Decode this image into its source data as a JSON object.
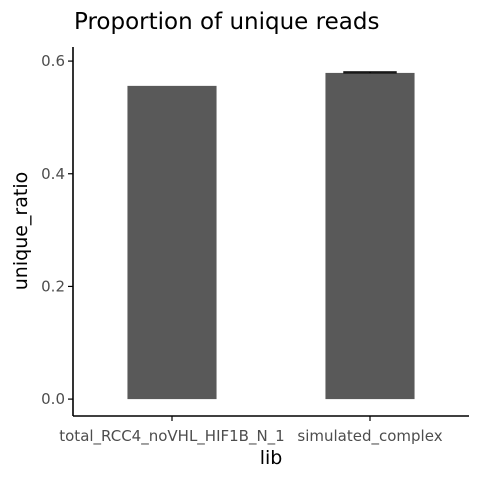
{
  "chart_data": {
    "type": "bar",
    "title": "Proportion of unique reads",
    "xlabel": "lib",
    "ylabel": "unique_ratio",
    "categories": [
      "total_RCC4_noVHL_HIF1B_N_1",
      "simulated_complex"
    ],
    "values": [
      0.556,
      0.579
    ],
    "error_bars": [
      null,
      {
        "low": 0.579,
        "high": 0.581
      }
    ],
    "ylim": [
      -0.03,
      0.625
    ],
    "yticks": [
      0.0,
      0.2,
      0.4,
      0.6
    ],
    "ytick_labels": [
      "0.0",
      "0.2",
      "0.4",
      "0.6"
    ],
    "grid": false,
    "legend": "none",
    "colors": {
      "bar": "#595959",
      "axis": "#000000",
      "tick_text": "#4d4d4d",
      "background": "#ffffff"
    }
  }
}
